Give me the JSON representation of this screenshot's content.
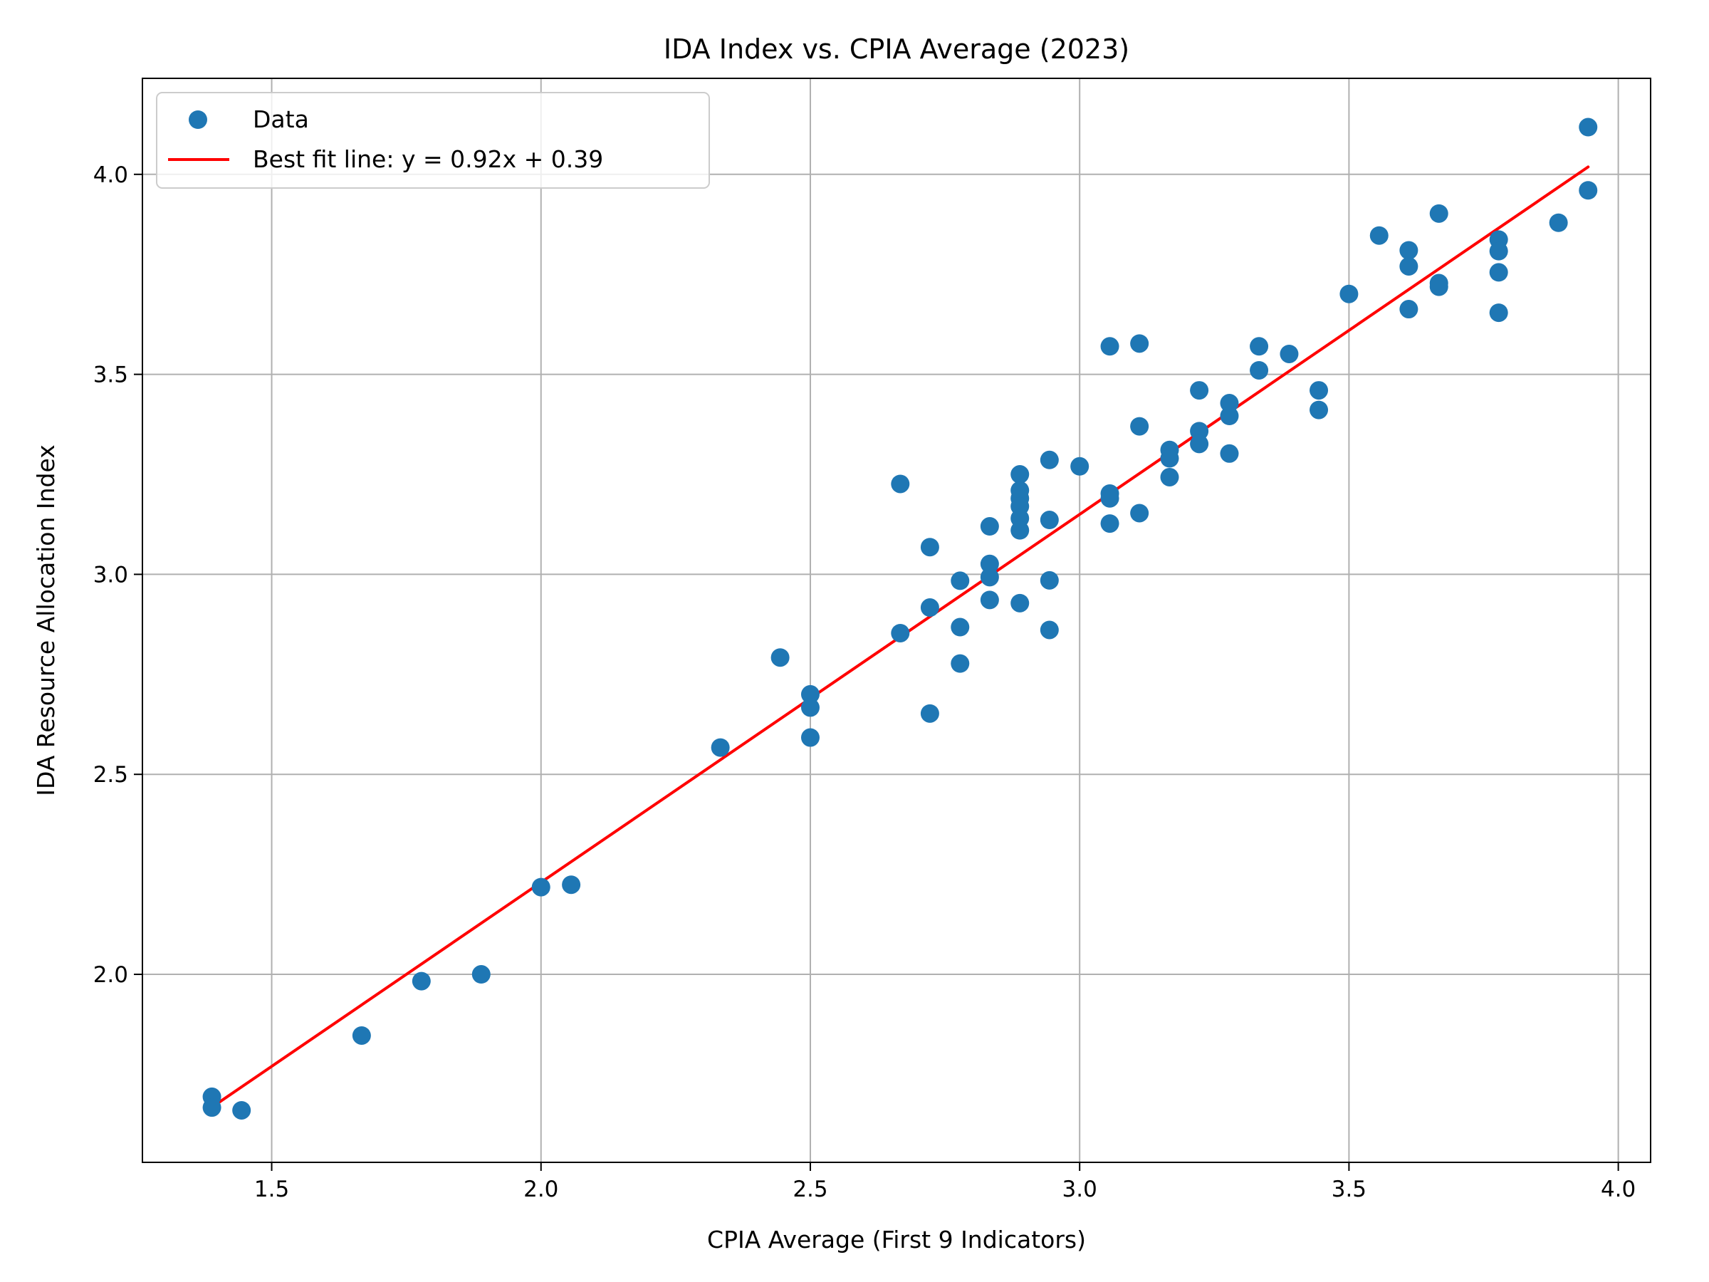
{
  "chart_data": {
    "type": "scatter",
    "title": "IDA Index vs. CPIA Average (2023)",
    "xlabel": "CPIA Average (First 9 Indicators)",
    "ylabel": "IDA Resource Allocation Index",
    "xlim": [
      1.26,
      4.06
    ],
    "ylim": [
      1.53,
      4.24
    ],
    "xticks": [
      1.5,
      2.0,
      2.5,
      3.0,
      3.5,
      4.0
    ],
    "xtick_labels": [
      "1.5",
      "2.0",
      "2.5",
      "3.0",
      "3.5",
      "4.0"
    ],
    "yticks": [
      2.0,
      2.5,
      3.0,
      3.5,
      4.0
    ],
    "ytick_labels": [
      "2.0",
      "2.5",
      "3.0",
      "3.5",
      "4.0"
    ],
    "grid": true,
    "legend_position": "top-left",
    "series": [
      {
        "name": "Data",
        "kind": "scatter",
        "color": "#1f77b4",
        "points": [
          [
            1.389,
            1.694
          ],
          [
            1.389,
            1.667
          ],
          [
            1.444,
            1.66
          ],
          [
            1.667,
            1.847
          ],
          [
            1.778,
            1.983
          ],
          [
            1.889,
            2.0
          ],
          [
            2.0,
            2.218
          ],
          [
            2.056,
            2.224
          ],
          [
            2.333,
            2.567
          ],
          [
            2.444,
            2.792
          ],
          [
            2.5,
            2.7
          ],
          [
            2.5,
            2.667
          ],
          [
            2.5,
            2.592
          ],
          [
            2.667,
            3.226
          ],
          [
            2.667,
            2.853
          ],
          [
            2.722,
            3.068
          ],
          [
            2.722,
            2.917
          ],
          [
            2.722,
            2.652
          ],
          [
            2.778,
            2.984
          ],
          [
            2.778,
            2.868
          ],
          [
            2.778,
            2.777
          ],
          [
            2.833,
            3.12
          ],
          [
            2.833,
            3.026
          ],
          [
            2.833,
            2.993
          ],
          [
            2.833,
            2.936
          ],
          [
            2.889,
            3.25
          ],
          [
            2.889,
            3.21
          ],
          [
            2.889,
            3.19
          ],
          [
            2.889,
            3.17
          ],
          [
            2.889,
            3.14
          ],
          [
            2.889,
            3.11
          ],
          [
            2.889,
            2.928
          ],
          [
            2.944,
            3.286
          ],
          [
            2.944,
            3.136
          ],
          [
            2.944,
            2.985
          ],
          [
            2.944,
            2.861
          ],
          [
            3.0,
            3.27
          ],
          [
            3.056,
            3.57
          ],
          [
            3.056,
            3.202
          ],
          [
            3.056,
            3.19
          ],
          [
            3.056,
            3.127
          ],
          [
            3.111,
            3.577
          ],
          [
            3.111,
            3.37
          ],
          [
            3.111,
            3.153
          ],
          [
            3.167,
            3.311
          ],
          [
            3.167,
            3.29
          ],
          [
            3.167,
            3.243
          ],
          [
            3.222,
            3.46
          ],
          [
            3.222,
            3.358
          ],
          [
            3.222,
            3.326
          ],
          [
            3.278,
            3.428
          ],
          [
            3.278,
            3.396
          ],
          [
            3.278,
            3.302
          ],
          [
            3.333,
            3.57
          ],
          [
            3.333,
            3.51
          ],
          [
            3.389,
            3.551
          ],
          [
            3.444,
            3.46
          ],
          [
            3.444,
            3.411
          ],
          [
            3.5,
            3.701
          ],
          [
            3.556,
            3.847
          ],
          [
            3.611,
            3.81
          ],
          [
            3.611,
            3.77
          ],
          [
            3.611,
            3.663
          ],
          [
            3.667,
            3.902
          ],
          [
            3.667,
            3.728
          ],
          [
            3.667,
            3.719
          ],
          [
            3.778,
            3.837
          ],
          [
            3.778,
            3.808
          ],
          [
            3.778,
            3.755
          ],
          [
            3.778,
            3.654
          ],
          [
            3.889,
            3.879
          ],
          [
            3.944,
            4.118
          ],
          [
            3.944,
            3.96
          ]
        ]
      },
      {
        "name": "Best fit line: y = 0.92x + 0.39",
        "kind": "line",
        "color": "#ff0000",
        "slope": 0.92,
        "intercept": 0.39,
        "x_range": [
          1.389,
          3.944
        ]
      }
    ]
  }
}
